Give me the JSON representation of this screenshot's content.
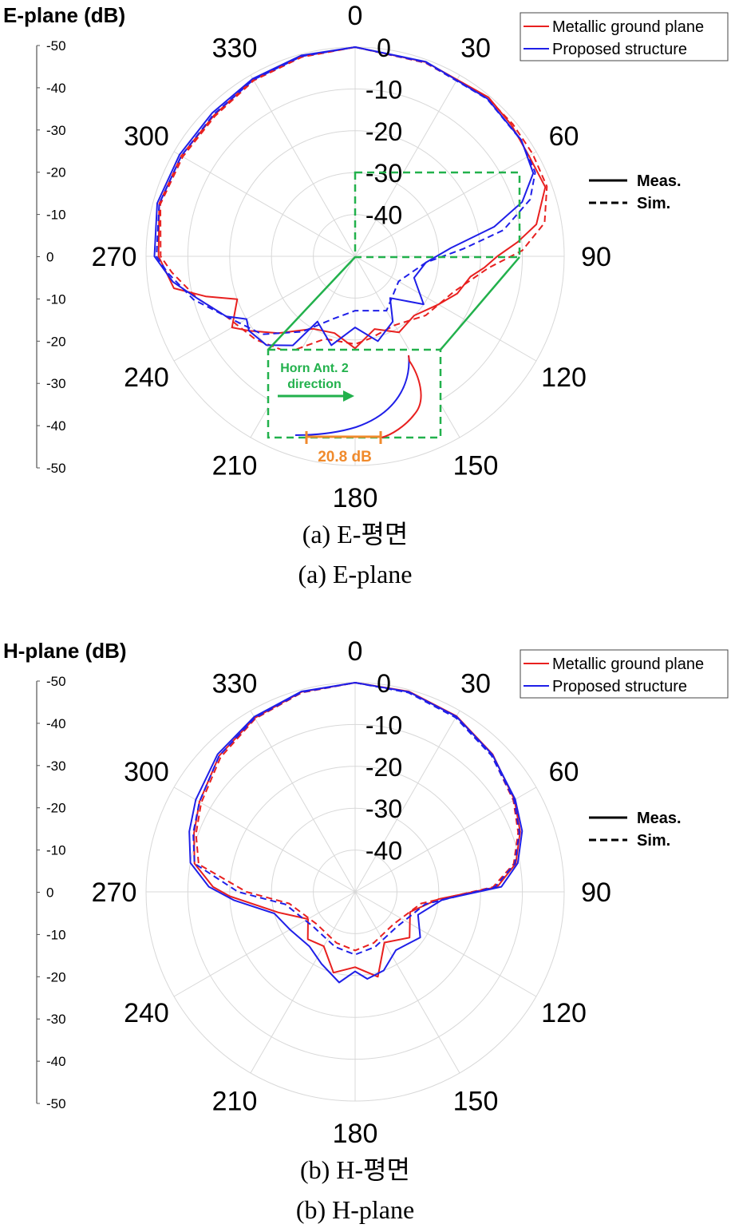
{
  "colors": {
    "metallic": "#e8201f",
    "proposed": "#1f1fe8",
    "zoom_box": "#22b14c",
    "annotation": "#f08a2c",
    "grid": "#d8d8d8"
  },
  "chart_data": [
    {
      "type": "polar-line",
      "title": "E-plane (dB)",
      "caption_kr": "(a)  E-평면",
      "caption_en": "(a)  E-plane",
      "angle_labels": [
        "0",
        "30",
        "60",
        "90",
        "120",
        "150",
        "180",
        "210",
        "240",
        "270",
        "300",
        "330"
      ],
      "ring_labels": [
        "0",
        "-10",
        "-20",
        "-30",
        "-40"
      ],
      "rlim": [
        -50,
        0
      ],
      "scale_labels": [
        "-50",
        "-40",
        "-30",
        "-20",
        "-10",
        "0",
        "-10",
        "-20",
        "-30",
        "-40",
        "-50"
      ],
      "legend": [
        "Metallic ground plane",
        "Proposed structure"
      ],
      "line_legend": [
        "Meas.",
        "Sim."
      ],
      "zoom_annotation": {
        "direction_label": "Horn Ant. 2",
        "direction_label2": "direction",
        "difference": "20.8 dB"
      },
      "series": [
        {
          "name": "Metallic ground plane",
          "style": "Meas.",
          "color": "#e8201f",
          "points": [
            [
              0,
              0
            ],
            [
              20,
              -0.6
            ],
            [
              40,
              -0.4
            ],
            [
              50,
              -1.2
            ],
            [
              60,
              -2
            ],
            [
              70,
              -1.6
            ],
            [
              80,
              -6
            ],
            [
              85,
              -11
            ],
            [
              90,
              -16
            ],
            [
              95,
              -19
            ],
            [
              100,
              -22
            ],
            [
              110,
              -24
            ],
            [
              120,
              -27
            ],
            [
              135,
              -30
            ],
            [
              150,
              -29
            ],
            [
              165,
              -32
            ],
            [
              180,
              -28
            ],
            [
              195,
              -31
            ],
            [
              210,
              -30
            ],
            [
              225,
              -24
            ],
            [
              235,
              -19
            ],
            [
              240,
              -16
            ],
            [
              250,
              -20
            ],
            [
              255,
              -13
            ],
            [
              260,
              -6
            ],
            [
              270,
              -3
            ],
            [
              285,
              -1.5
            ],
            [
              300,
              -2
            ],
            [
              315,
              -2.3
            ],
            [
              330,
              -1.2
            ],
            [
              345,
              -0.5
            ],
            [
              360,
              0
            ]
          ]
        },
        {
          "name": "Metallic ground plane",
          "style": "Sim.",
          "color": "#e8201f",
          "points": [
            [
              0,
              0
            ],
            [
              20,
              -0.8
            ],
            [
              40,
              -0.7
            ],
            [
              50,
              -0.8
            ],
            [
              60,
              -1
            ],
            [
              70,
              -1.2
            ],
            [
              80,
              -4
            ],
            [
              88,
              -10
            ],
            [
              95,
              -18
            ],
            [
              110,
              -25
            ],
            [
              130,
              -28
            ],
            [
              150,
              -31
            ],
            [
              170,
              -30
            ],
            [
              180,
              -29
            ],
            [
              200,
              -29
            ],
            [
              215,
              -22
            ],
            [
              230,
              -19
            ],
            [
              245,
              -16
            ],
            [
              255,
              -11
            ],
            [
              265,
              -6
            ],
            [
              270,
              -3.5
            ],
            [
              285,
              -1.8
            ],
            [
              300,
              -2.4
            ],
            [
              315,
              -2.6
            ],
            [
              330,
              -1.5
            ],
            [
              345,
              -0.7
            ],
            [
              360,
              0
            ]
          ]
        },
        {
          "name": "Proposed structure",
          "style": "Meas.",
          "color": "#1f1fe8",
          "points": [
            [
              0,
              0
            ],
            [
              20,
              -0.5
            ],
            [
              40,
              -0.8
            ],
            [
              55,
              -1.5
            ],
            [
              65,
              -3
            ],
            [
              72,
              -8
            ],
            [
              78,
              -16
            ],
            [
              85,
              -27
            ],
            [
              95,
              -33
            ],
            [
              110,
              -35
            ],
            [
              125,
              -30
            ],
            [
              140,
              -37
            ],
            [
              150,
              -32
            ],
            [
              165,
              -29
            ],
            [
              180,
              -33
            ],
            [
              195,
              -28
            ],
            [
              210,
              -32
            ],
            [
              215,
              -24
            ],
            [
              225,
              -20
            ],
            [
              235,
              -19
            ],
            [
              240,
              -20
            ],
            [
              245,
              -16
            ],
            [
              255,
              -11
            ],
            [
              262,
              -6
            ],
            [
              270,
              -2
            ],
            [
              285,
              -1
            ],
            [
              300,
              -1.5
            ],
            [
              315,
              -1.6
            ],
            [
              330,
              -1
            ],
            [
              345,
              -0.3
            ],
            [
              360,
              0
            ]
          ]
        },
        {
          "name": "Proposed structure",
          "style": "Sim.",
          "color": "#1f1fe8",
          "points": [
            [
              0,
              0
            ],
            [
              20,
              -0.7
            ],
            [
              40,
              -0.9
            ],
            [
              55,
              -1.6
            ],
            [
              65,
              -2.5
            ],
            [
              72,
              -6
            ],
            [
              80,
              -14
            ],
            [
              86,
              -24
            ],
            [
              95,
              -33
            ],
            [
              120,
              -38
            ],
            [
              150,
              -35
            ],
            [
              180,
              -37
            ],
            [
              200,
              -34
            ],
            [
              215,
              -28
            ],
            [
              230,
              -21
            ],
            [
              245,
              -16
            ],
            [
              255,
              -10
            ],
            [
              265,
              -5
            ],
            [
              270,
              -2.5
            ],
            [
              285,
              -1.5
            ],
            [
              300,
              -2
            ],
            [
              315,
              -2.1
            ],
            [
              330,
              -1.3
            ],
            [
              345,
              -0.5
            ],
            [
              360,
              0
            ]
          ]
        }
      ]
    },
    {
      "type": "polar-line",
      "title": "H-plane (dB)",
      "caption_kr": "(b)  H-평면",
      "caption_en": "(b)  H-plane",
      "angle_labels": [
        "0",
        "30",
        "60",
        "90",
        "120",
        "150",
        "180",
        "210",
        "240",
        "270",
        "300",
        "330"
      ],
      "ring_labels": [
        "0",
        "-10",
        "-20",
        "-30",
        "-40"
      ],
      "rlim": [
        -50,
        0
      ],
      "scale_labels": [
        "-50",
        "-40",
        "-30",
        "-20",
        "-10",
        "0",
        "-10",
        "-20",
        "-30",
        "-40",
        "-50"
      ],
      "legend": [
        "Metallic ground plane",
        "Proposed structure"
      ],
      "line_legend": [
        "Meas.",
        "Sim."
      ],
      "series": [
        {
          "name": "Metallic ground plane",
          "style": "Meas.",
          "color": "#e8201f",
          "points": [
            [
              0,
              0
            ],
            [
              15,
              -0.4
            ],
            [
              30,
              -1.5
            ],
            [
              45,
              -3.5
            ],
            [
              60,
              -6
            ],
            [
              70,
              -8
            ],
            [
              80,
              -11
            ],
            [
              88,
              -16
            ],
            [
              95,
              -30
            ],
            [
              110,
              -36
            ],
            [
              130,
              -33
            ],
            [
              150,
              -36
            ],
            [
              165,
              -29
            ],
            [
              180,
              -32
            ],
            [
              195,
              -30
            ],
            [
              210,
              -35
            ],
            [
              225,
              -34
            ],
            [
              240,
              -37
            ],
            [
              255,
              -31
            ],
            [
              268,
              -20
            ],
            [
              272,
              -16
            ],
            [
              280,
              -11
            ],
            [
              290,
              -9
            ],
            [
              300,
              -7
            ],
            [
              315,
              -4
            ],
            [
              330,
              -2
            ],
            [
              345,
              -0.5
            ],
            [
              360,
              0
            ]
          ]
        },
        {
          "name": "Metallic ground plane",
          "style": "Sim.",
          "color": "#e8201f",
          "points": [
            [
              0,
              0
            ],
            [
              15,
              -0.6
            ],
            [
              30,
              -1.8
            ],
            [
              45,
              -3.8
            ],
            [
              60,
              -6.3
            ],
            [
              70,
              -8.5
            ],
            [
              80,
              -11.5
            ],
            [
              88,
              -17
            ],
            [
              100,
              -34
            ],
            [
              130,
              -38
            ],
            [
              160,
              -37
            ],
            [
              180,
              -36
            ],
            [
              200,
              -37
            ],
            [
              230,
              -38
            ],
            [
              260,
              -34
            ],
            [
              270,
              -24
            ],
            [
              280,
              -12
            ],
            [
              290,
              -9.5
            ],
            [
              300,
              -7.5
            ],
            [
              315,
              -4.5
            ],
            [
              330,
              -2.2
            ],
            [
              345,
              -0.7
            ],
            [
              360,
              0
            ]
          ]
        },
        {
          "name": "Proposed structure",
          "style": "Meas.",
          "color": "#1f1fe8",
          "points": [
            [
              0,
              0
            ],
            [
              15,
              -0.5
            ],
            [
              30,
              -1.6
            ],
            [
              45,
              -3.6
            ],
            [
              60,
              -5.8
            ],
            [
              70,
              -7.5
            ],
            [
              80,
              -10.5
            ],
            [
              88,
              -15
            ],
            [
              95,
              -29
            ],
            [
              110,
              -34
            ],
            [
              125,
              -31
            ],
            [
              145,
              -33
            ],
            [
              160,
              -30
            ],
            [
              172,
              -29
            ],
            [
              180,
              -31
            ],
            [
              190,
              -28
            ],
            [
              205,
              -31
            ],
            [
              220,
              -33
            ],
            [
              240,
              -32
            ],
            [
              255,
              -30
            ],
            [
              266,
              -21
            ],
            [
              272,
              -15
            ],
            [
              280,
              -10
            ],
            [
              290,
              -7.8
            ],
            [
              300,
              -6
            ],
            [
              315,
              -3.5
            ],
            [
              330,
              -1.7
            ],
            [
              345,
              -0.4
            ],
            [
              360,
              0
            ]
          ]
        },
        {
          "name": "Proposed structure",
          "style": "Sim.",
          "color": "#1f1fe8",
          "points": [
            [
              0,
              0
            ],
            [
              15,
              -0.7
            ],
            [
              30,
              -1.9
            ],
            [
              45,
              -3.9
            ],
            [
              60,
              -6.1
            ],
            [
              70,
              -8.2
            ],
            [
              80,
              -11.2
            ],
            [
              88,
              -16.5
            ],
            [
              100,
              -33
            ],
            [
              130,
              -37
            ],
            [
              160,
              -36
            ],
            [
              180,
              -35
            ],
            [
              200,
              -36
            ],
            [
              230,
              -37
            ],
            [
              260,
              -33
            ],
            [
              270,
              -22
            ],
            [
              280,
              -11
            ],
            [
              290,
              -8.8
            ],
            [
              300,
              -7
            ],
            [
              315,
              -4
            ],
            [
              330,
              -2
            ],
            [
              345,
              -0.6
            ],
            [
              360,
              0
            ]
          ]
        }
      ]
    }
  ]
}
